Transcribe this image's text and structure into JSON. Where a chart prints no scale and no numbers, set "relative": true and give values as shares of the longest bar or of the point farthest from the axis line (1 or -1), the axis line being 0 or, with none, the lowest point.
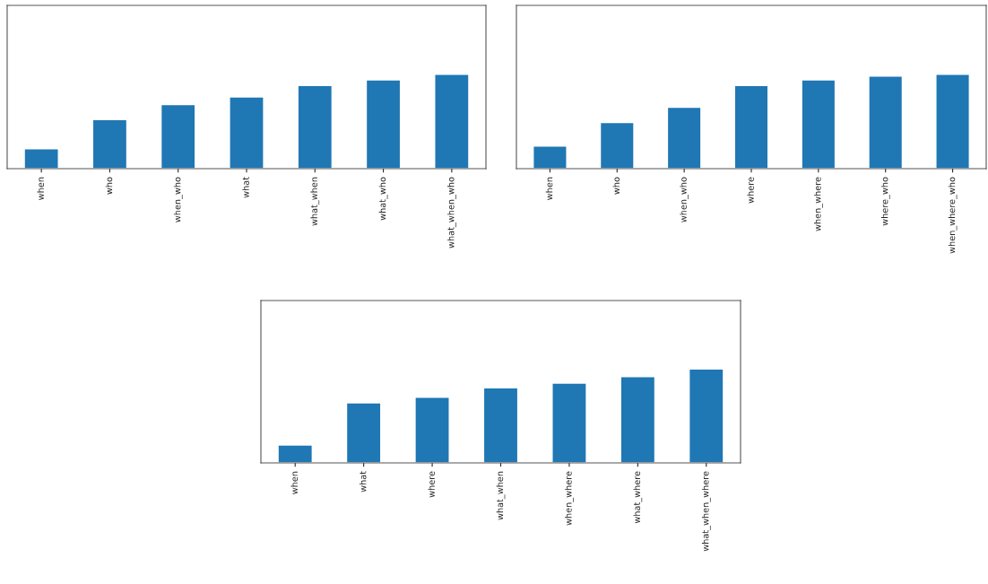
{
  "chart_data": [
    {
      "type": "bar",
      "relative": true,
      "tick_labels": "x",
      "color": "#1f77b4",
      "categories": [
        "when",
        "who",
        "when_who",
        "what",
        "what_when",
        "what_who",
        "what_when_who"
      ],
      "values": [
        0.21,
        0.52,
        0.68,
        0.76,
        0.88,
        0.94,
        1
      ]
    },
    {
      "type": "bar",
      "relative": true,
      "tick_labels": "x",
      "color": "#1f77b4",
      "categories": [
        "when",
        "who",
        "when_who",
        "where",
        "when_where",
        "where_who",
        "when_where_who"
      ],
      "values": [
        0.24,
        0.49,
        0.65,
        0.88,
        0.94,
        0.98,
        1
      ]
    },
    {
      "type": "bar",
      "relative": true,
      "tick_labels": "x",
      "color": "#1f77b4",
      "categories": [
        "when",
        "what",
        "where",
        "what_when",
        "when_where",
        "what_where",
        "what_when_where"
      ],
      "values": [
        0.19,
        0.64,
        0.7,
        0.8,
        0.85,
        0.92,
        1
      ]
    }
  ]
}
